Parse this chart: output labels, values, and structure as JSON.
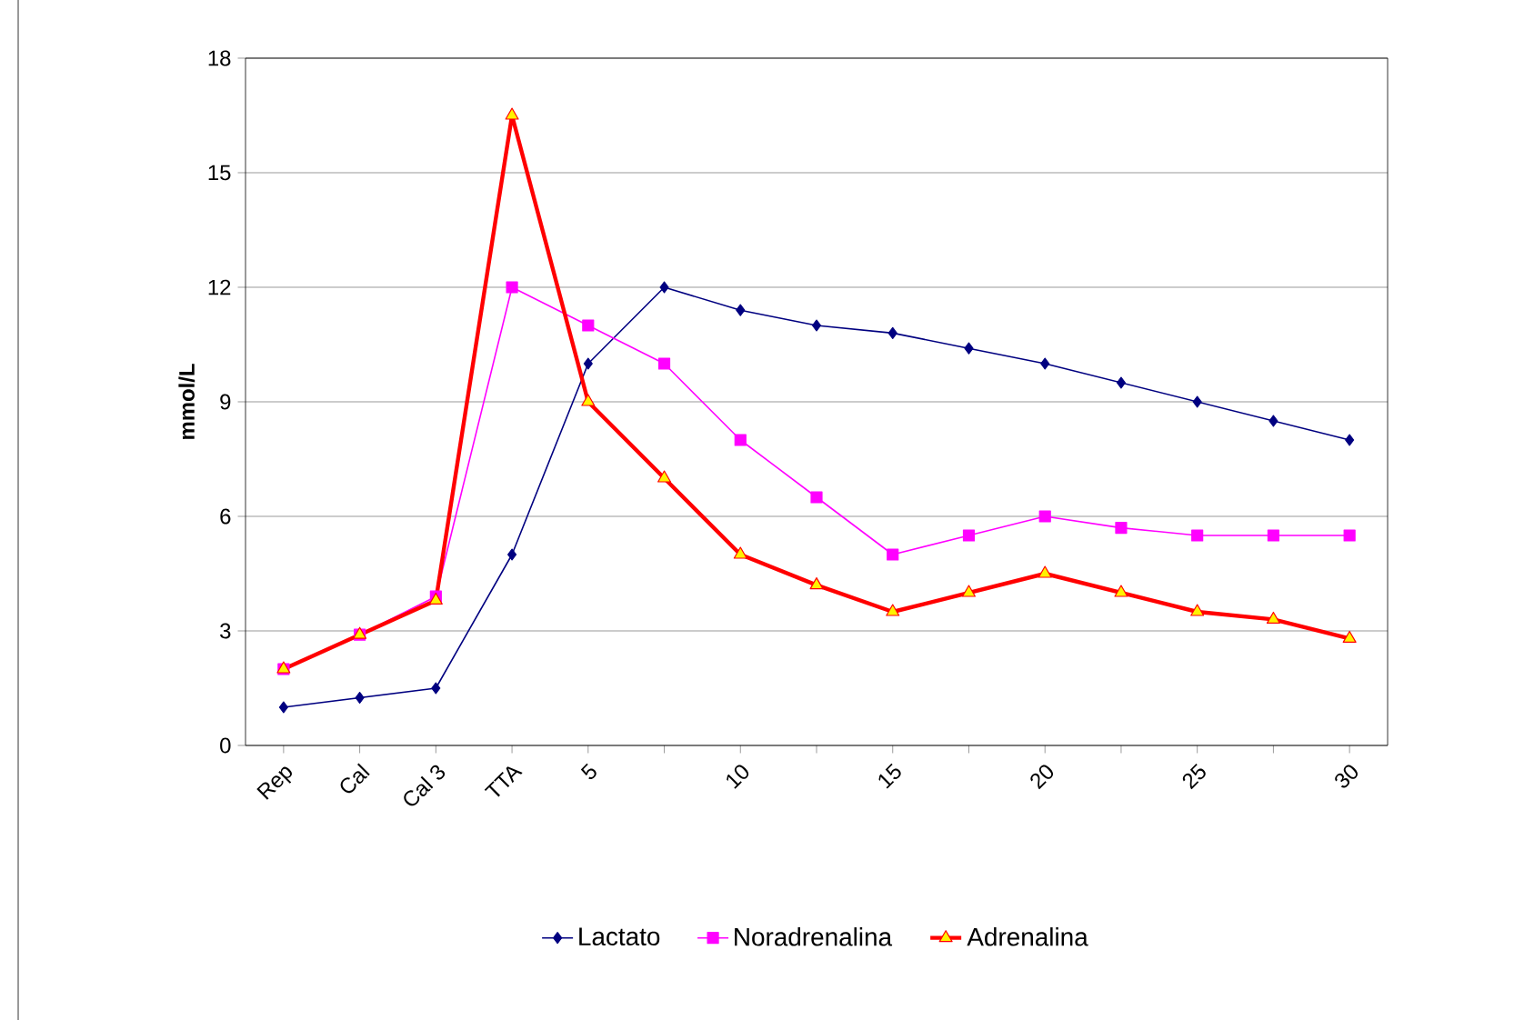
{
  "chart_data": {
    "type": "line",
    "ylabel": "mmol/L",
    "categories": [
      "Rep",
      "Cal",
      "Cal 3",
      "TTA",
      "5",
      null,
      "10",
      null,
      "15",
      null,
      "20",
      null,
      "25",
      null,
      "30"
    ],
    "series": [
      {
        "name": "Lactato",
        "color": "#000080",
        "marker": "diamond",
        "values": [
          1,
          1.25,
          1.5,
          5,
          10,
          12,
          11.4,
          11,
          10.8,
          10.4,
          10,
          9.5,
          9,
          8.5,
          8
        ]
      },
      {
        "name": "Noradrenalina",
        "color": "#ff00ff",
        "marker": "square",
        "values": [
          2,
          2.9,
          3.9,
          12,
          11,
          10,
          8,
          6.5,
          5,
          5.5,
          6,
          5.7,
          5.5,
          5.5,
          5.5
        ]
      },
      {
        "name": "Adrenalina",
        "color": "#ff0000",
        "marker": "triangle",
        "values": [
          2,
          2.9,
          3.8,
          16.5,
          9,
          7,
          5,
          4.2,
          3.5,
          4,
          4.5,
          4,
          3.5,
          3.3,
          2.8
        ]
      }
    ],
    "ylim": [
      0,
      18
    ],
    "yticks": [
      0,
      3,
      6,
      9,
      12,
      15,
      18
    ],
    "grid": "y",
    "legend": "bottom"
  }
}
